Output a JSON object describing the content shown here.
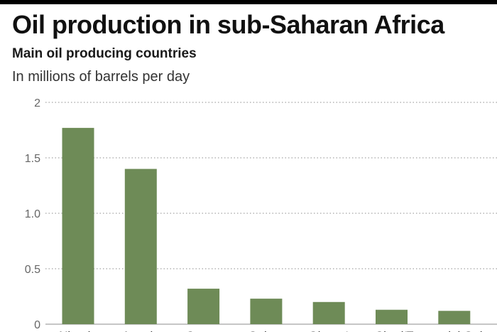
{
  "header": {
    "title": "Oil production in sub-Saharan Africa",
    "subtitle": "Main oil producing countries",
    "unit": "In millions of barrels per day"
  },
  "colors": {
    "bar": "#6e8b57",
    "grid": "#8c8c8c",
    "tick_text": "#666666",
    "rule": "#000000"
  },
  "chart_data": {
    "type": "bar",
    "title": "Oil production in sub-Saharan Africa",
    "subtitle": "Main oil producing countries",
    "ylabel": "In millions of barrels per day",
    "xlabel": "",
    "categories": [
      "Nigeria",
      "Angola",
      "Congo",
      "Gabon",
      "Ghana*",
      "Chad*",
      "Equatorial Guinea"
    ],
    "values": [
      1.77,
      1.4,
      0.32,
      0.23,
      0.2,
      0.13,
      0.12
    ],
    "ylim": [
      0,
      2
    ],
    "yticks": [
      0,
      0.5,
      1.0,
      1.5,
      2
    ],
    "ytick_labels": [
      "0",
      "0.5",
      "1.0",
      "1.5",
      "2"
    ],
    "grid": "horizontal dotted"
  }
}
